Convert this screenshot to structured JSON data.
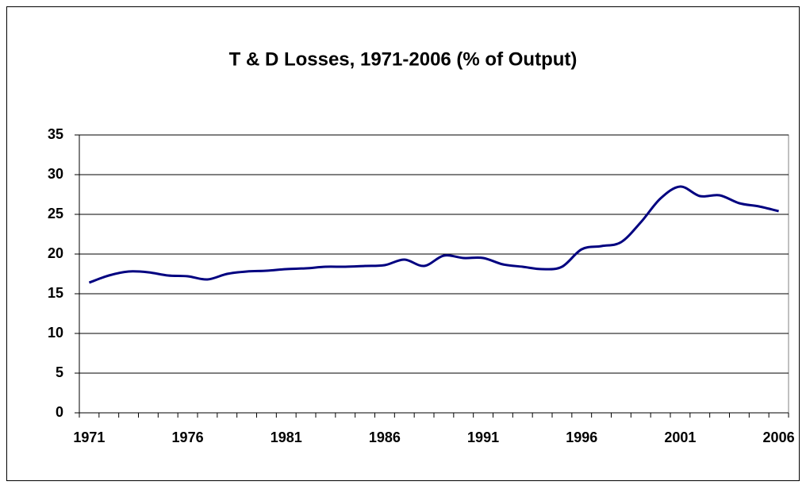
{
  "chart_data": {
    "type": "line",
    "title": "T & D Losses, 1971-2006 (% of Output)",
    "categories": [
      "1971",
      null,
      null,
      null,
      null,
      "1976",
      null,
      null,
      null,
      null,
      "1981",
      null,
      null,
      null,
      null,
      "1986",
      null,
      null,
      null,
      null,
      "1991",
      null,
      null,
      null,
      null,
      "1996",
      null,
      null,
      null,
      null,
      "2001",
      null,
      null,
      null,
      null,
      "2006"
    ],
    "series": [
      {
        "name": "T & D Losses",
        "color": "#000080",
        "values": [
          16.4,
          17.3,
          17.8,
          17.7,
          17.3,
          17.2,
          16.8,
          17.5,
          17.8,
          17.9,
          18.1,
          18.2,
          18.4,
          18.4,
          18.5,
          18.6,
          19.3,
          18.5,
          19.8,
          19.5,
          19.5,
          18.7,
          18.4,
          18.1,
          18.4,
          20.6,
          21.0,
          21.5,
          24.0,
          27.0,
          28.5,
          27.3,
          27.4,
          26.4,
          26.0,
          25.4
        ]
      }
    ],
    "ylim": [
      0,
      35
    ],
    "yticks": [
      0,
      5,
      10,
      15,
      20,
      25,
      30,
      35
    ],
    "grid": true
  }
}
